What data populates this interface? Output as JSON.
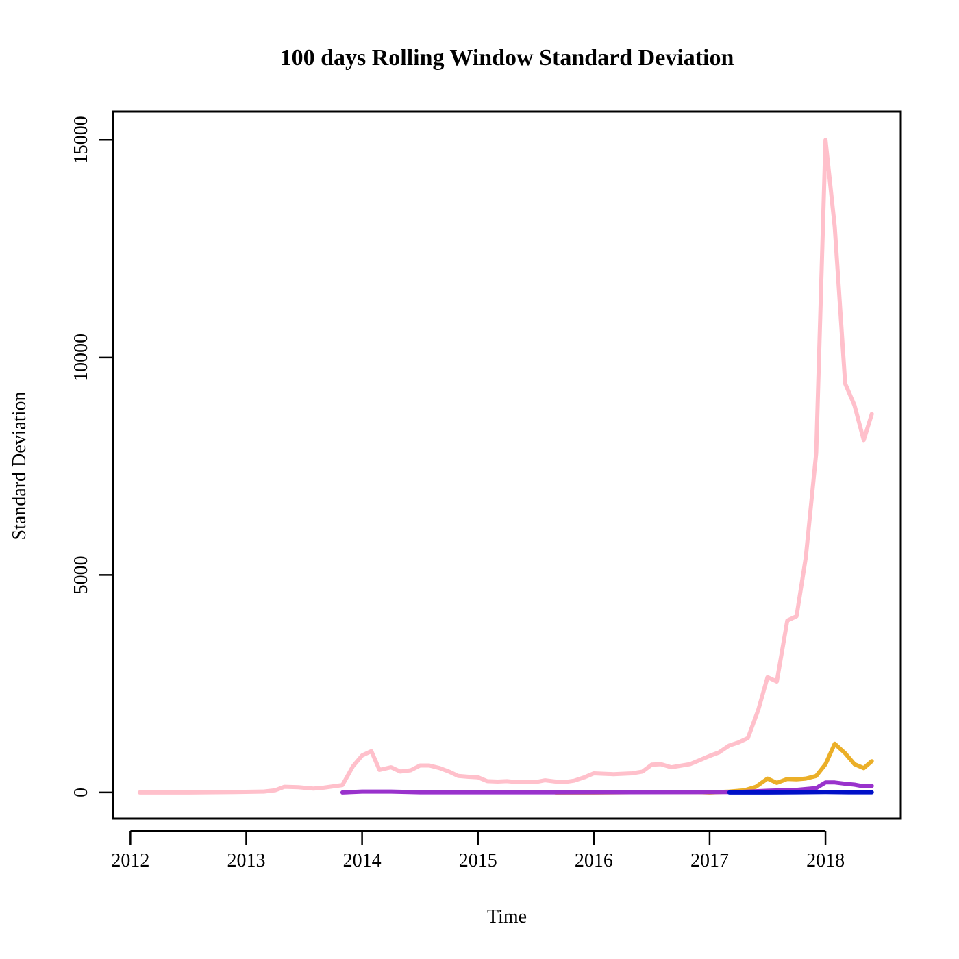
{
  "chart_data": {
    "type": "line",
    "title": "100 days Rolling Window Standard Deviation",
    "xlabel": "Time",
    "ylabel": "Standard Deviation",
    "xlim": [
      2011.85,
      2018.65
    ],
    "ylim": [
      -600,
      15650
    ],
    "x_ticks": [
      2012,
      2013,
      2014,
      2015,
      2016,
      2017,
      2018
    ],
    "x_tick_labels": [
      "2012",
      "2013",
      "2014",
      "2015",
      "2016",
      "2017",
      "2018"
    ],
    "y_ticks": [
      0,
      5000,
      10000,
      15000
    ],
    "y_tick_labels": [
      "0",
      "5000",
      "10000",
      "15000"
    ],
    "grid": false,
    "legend": "none",
    "series": [
      {
        "color": "#FFC0CB",
        "points": [
          [
            2012.08,
            0
          ],
          [
            2012.5,
            0
          ],
          [
            2012.9,
            10
          ],
          [
            2013.15,
            20
          ],
          [
            2013.25,
            50
          ],
          [
            2013.33,
            130
          ],
          [
            2013.45,
            120
          ],
          [
            2013.58,
            90
          ],
          [
            2013.67,
            110
          ],
          [
            2013.83,
            170
          ],
          [
            2013.92,
            600
          ],
          [
            2014.0,
            850
          ],
          [
            2014.08,
            950
          ],
          [
            2014.15,
            520
          ],
          [
            2014.25,
            580
          ],
          [
            2014.33,
            480
          ],
          [
            2014.42,
            510
          ],
          [
            2014.5,
            620
          ],
          [
            2014.58,
            620
          ],
          [
            2014.67,
            560
          ],
          [
            2014.75,
            480
          ],
          [
            2014.83,
            380
          ],
          [
            2014.92,
            360
          ],
          [
            2015.0,
            350
          ],
          [
            2015.08,
            260
          ],
          [
            2015.17,
            250
          ],
          [
            2015.25,
            260
          ],
          [
            2015.33,
            240
          ],
          [
            2015.5,
            240
          ],
          [
            2015.58,
            280
          ],
          [
            2015.67,
            250
          ],
          [
            2015.75,
            240
          ],
          [
            2015.83,
            270
          ],
          [
            2015.92,
            350
          ],
          [
            2016.0,
            440
          ],
          [
            2016.17,
            420
          ],
          [
            2016.33,
            440
          ],
          [
            2016.42,
            480
          ],
          [
            2016.5,
            640
          ],
          [
            2016.58,
            650
          ],
          [
            2016.67,
            580
          ],
          [
            2016.83,
            650
          ],
          [
            2016.92,
            750
          ],
          [
            2017.0,
            840
          ],
          [
            2017.08,
            920
          ],
          [
            2017.17,
            1080
          ],
          [
            2017.25,
            1150
          ],
          [
            2017.33,
            1250
          ],
          [
            2017.42,
            1900
          ],
          [
            2017.5,
            2650
          ],
          [
            2017.58,
            2550
          ],
          [
            2017.67,
            3950
          ],
          [
            2017.75,
            4050
          ],
          [
            2017.83,
            5400
          ],
          [
            2017.92,
            7800
          ],
          [
            2018.0,
            15000
          ],
          [
            2018.08,
            13000
          ],
          [
            2018.17,
            9400
          ],
          [
            2018.25,
            8900
          ],
          [
            2018.33,
            8100
          ],
          [
            2018.4,
            8700
          ]
        ]
      },
      {
        "color": "#EBAF28",
        "points": [
          [
            2015.67,
            0
          ],
          [
            2016.0,
            0
          ],
          [
            2016.5,
            10
          ],
          [
            2016.9,
            10
          ],
          [
            2017.0,
            0
          ],
          [
            2017.17,
            20
          ],
          [
            2017.3,
            50
          ],
          [
            2017.4,
            130
          ],
          [
            2017.5,
            320
          ],
          [
            2017.58,
            220
          ],
          [
            2017.67,
            310
          ],
          [
            2017.75,
            300
          ],
          [
            2017.83,
            320
          ],
          [
            2017.92,
            380
          ],
          [
            2018.0,
            650
          ],
          [
            2018.08,
            1120
          ],
          [
            2018.17,
            900
          ],
          [
            2018.25,
            650
          ],
          [
            2018.33,
            560
          ],
          [
            2018.4,
            720
          ]
        ]
      },
      {
        "color": "#9932CC",
        "points": [
          [
            2013.83,
            0
          ],
          [
            2014.0,
            20
          ],
          [
            2014.25,
            20
          ],
          [
            2014.5,
            5
          ],
          [
            2015.0,
            5
          ],
          [
            2015.5,
            5
          ],
          [
            2015.67,
            5
          ],
          [
            2017.25,
            10
          ],
          [
            2017.5,
            40
          ],
          [
            2017.75,
            60
          ],
          [
            2017.92,
            100
          ],
          [
            2018.0,
            230
          ],
          [
            2018.08,
            230
          ],
          [
            2018.17,
            200
          ],
          [
            2018.25,
            180
          ],
          [
            2018.33,
            140
          ],
          [
            2018.4,
            150
          ]
        ]
      },
      {
        "color": "#0010C8",
        "points": [
          [
            2017.17,
            0
          ],
          [
            2017.5,
            0
          ],
          [
            2017.75,
            5
          ],
          [
            2018.0,
            10
          ],
          [
            2018.2,
            5
          ],
          [
            2018.4,
            5
          ]
        ]
      }
    ]
  }
}
